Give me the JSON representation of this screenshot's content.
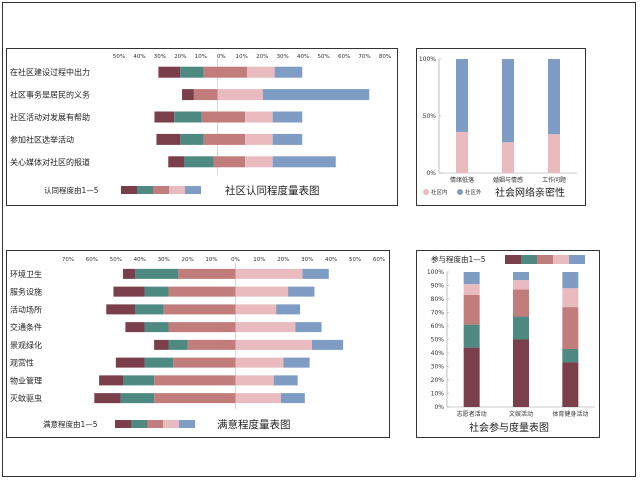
{
  "colors": [
    "#7a3f4a",
    "#4e8a82",
    "#c17c7c",
    "#e9bbbe",
    "#7f9cc4"
  ],
  "chart_data": [
    {
      "id": "c1",
      "type": "bar",
      "subtype": "diverging-stacked-horizontal",
      "title": "社区认同程度量表图",
      "legend_label": "认同程度由1—5",
      "xlim": [
        -50,
        85
      ],
      "tick_labels": [
        "50%",
        "40%",
        "30%",
        "20%",
        "10%",
        "0%",
        "10%",
        "20%",
        "30%",
        "40%",
        "50%",
        "60%",
        "70%",
        "80%"
      ],
      "categories": [
        "在社区建设过程中出力",
        "社区事务是居民的义务",
        "社区活动对发展有帮助",
        "参加社区选举活动",
        "关心媒体对社区的报道"
      ],
      "segments": [
        [
          [
            -30,
            -19
          ],
          [
            -19,
            -7
          ],
          [
            -7,
            15
          ],
          [
            15,
            29
          ],
          [
            29,
            43
          ]
        ],
        [
          [
            -18,
            -12
          ],
          [
            -12,
            -12
          ],
          [
            -12,
            0
          ],
          [
            0,
            23
          ],
          [
            23,
            77
          ]
        ],
        [
          [
            -32,
            -22
          ],
          [
            -22,
            -8
          ],
          [
            -8,
            14
          ],
          [
            14,
            28
          ],
          [
            28,
            43
          ]
        ],
        [
          [
            -31,
            -19
          ],
          [
            -19,
            -7
          ],
          [
            -7,
            14
          ],
          [
            14,
            28
          ],
          [
            28,
            43
          ]
        ],
        [
          [
            -25,
            -17
          ],
          [
            -17,
            -2
          ],
          [
            -2,
            14
          ],
          [
            14,
            28
          ],
          [
            28,
            60
          ]
        ]
      ]
    },
    {
      "id": "c2",
      "type": "bar",
      "subtype": "stacked-vertical-100",
      "title": "社会网络亲密性",
      "categories": [
        "情绪低落",
        "婚姻与情感",
        "工作问题"
      ],
      "yticks": [
        "0%",
        "50%",
        "100%"
      ],
      "series": [
        {
          "name": "社区内",
          "values": [
            36,
            27,
            34
          ]
        },
        {
          "name": "社区外",
          "values": [
            64,
            73,
            66
          ]
        }
      ]
    },
    {
      "id": "c3",
      "type": "bar",
      "subtype": "diverging-stacked-horizontal",
      "title": "满意程度量表图",
      "legend_label": "满意程度由1—5",
      "xlim": [
        -70,
        60
      ],
      "tick_labels": [
        "70%",
        "60%",
        "50%",
        "40%",
        "30%",
        "20%",
        "10%",
        "0%",
        "10%",
        "20%",
        "30%",
        "40%",
        "50%",
        "60%"
      ],
      "categories": [
        "环境卫生",
        "服务设施",
        "活动场所",
        "交通条件",
        "景观绿化",
        "观赏性",
        "物业管理",
        "灭蚊驱虫"
      ],
      "segments": [
        [
          [
            -47,
            -42
          ],
          [
            -42,
            -24
          ],
          [
            -24,
            0
          ],
          [
            0,
            28
          ],
          [
            28,
            39
          ]
        ],
        [
          [
            -51,
            -38
          ],
          [
            -38,
            -28
          ],
          [
            -28,
            0
          ],
          [
            0,
            22
          ],
          [
            22,
            33
          ]
        ],
        [
          [
            -54,
            -42
          ],
          [
            -42,
            -30
          ],
          [
            -30,
            0
          ],
          [
            0,
            17
          ],
          [
            17,
            27
          ]
        ],
        [
          [
            -46,
            -38
          ],
          [
            -38,
            -28
          ],
          [
            -28,
            0
          ],
          [
            0,
            25
          ],
          [
            25,
            36
          ]
        ],
        [
          [
            -34,
            -28
          ],
          [
            -28,
            -20
          ],
          [
            -20,
            0
          ],
          [
            0,
            32
          ],
          [
            32,
            45
          ]
        ],
        [
          [
            -50,
            -38
          ],
          [
            -38,
            -26
          ],
          [
            -26,
            0
          ],
          [
            0,
            20
          ],
          [
            20,
            31
          ]
        ],
        [
          [
            -57,
            -47
          ],
          [
            -47,
            -34
          ],
          [
            -34,
            0
          ],
          [
            0,
            16
          ],
          [
            16,
            26
          ]
        ],
        [
          [
            -59,
            -48
          ],
          [
            -48,
            -34
          ],
          [
            -34,
            0
          ],
          [
            0,
            19
          ],
          [
            19,
            29
          ]
        ]
      ]
    },
    {
      "id": "c4",
      "type": "bar",
      "subtype": "stacked-vertical-100",
      "title": "社会参与度量表图",
      "legend_label": "参与程度由1—5",
      "categories": [
        "志愿者活动",
        "文娱活动",
        "体育健身活动"
      ],
      "yticks": [
        "0%",
        "10%",
        "20%",
        "30%",
        "40%",
        "50%",
        "60%",
        "70%",
        "80%",
        "90%",
        "100%"
      ],
      "series": [
        {
          "name": "1",
          "values": [
            44,
            50,
            33
          ]
        },
        {
          "name": "2",
          "values": [
            17,
            17,
            10
          ]
        },
        {
          "name": "3",
          "values": [
            22,
            20,
            31
          ]
        },
        {
          "name": "4",
          "values": [
            8,
            7,
            14
          ]
        },
        {
          "name": "5",
          "values": [
            9,
            6,
            12
          ]
        }
      ]
    }
  ]
}
